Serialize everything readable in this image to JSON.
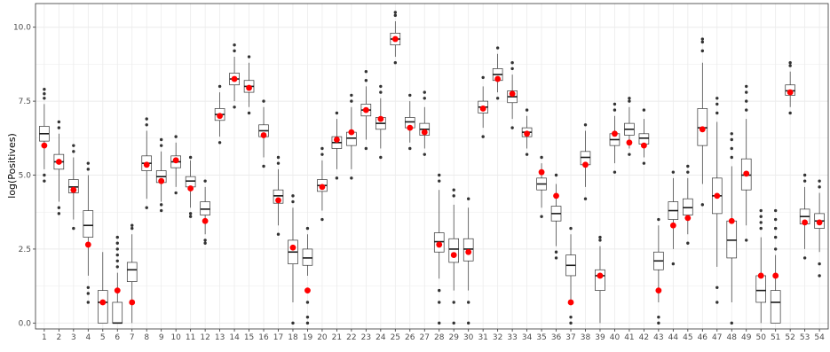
{
  "chart_data": {
    "type": "boxplot",
    "title": "",
    "xlabel": "",
    "ylabel": "log(Positives)",
    "ylim": [
      -0.2,
      10.8
    ],
    "y_ticks": [
      0.0,
      2.5,
      5.0,
      7.5,
      10.0
    ],
    "y_tick_labels": [
      "0.0",
      "2.5",
      "5.0",
      "7.5",
      "10.0"
    ],
    "grid": true,
    "legend": "none",
    "colors": {
      "box_fill": "#ffffff",
      "box_line": "#333333",
      "outlier": "#333333",
      "mean_point": "#ff0000",
      "grid": "#ebebeb",
      "panel_border": "#333333"
    },
    "categories": [
      "1",
      "2",
      "3",
      "4",
      "5",
      "6",
      "7",
      "8",
      "9",
      "10",
      "11",
      "12",
      "13",
      "14",
      "15",
      "16",
      "17",
      "18",
      "19",
      "20",
      "21",
      "22",
      "23",
      "24",
      "25",
      "26",
      "27",
      "28",
      "29",
      "30",
      "31",
      "32",
      "33",
      "34",
      "35",
      "36",
      "37",
      "38",
      "39",
      "40",
      "41",
      "42",
      "43",
      "44",
      "45",
      "46",
      "47",
      "48",
      "49",
      "50",
      "51",
      "52",
      "53",
      "54"
    ],
    "boxes": [
      {
        "x": "1",
        "lo": 5.2,
        "q1": 6.15,
        "med": 6.4,
        "q3": 6.65,
        "hi": 7.4,
        "mean": 6.0,
        "outliers": [
          4.8,
          5.0,
          7.6,
          7.75,
          7.9
        ]
      },
      {
        "x": "2",
        "lo": 4.1,
        "q1": 5.2,
        "med": 5.45,
        "q3": 5.7,
        "hi": 6.4,
        "mean": 5.45,
        "outliers": [
          3.7,
          3.9,
          6.6,
          6.8
        ]
      },
      {
        "x": "3",
        "lo": 3.5,
        "q1": 4.4,
        "med": 4.6,
        "q3": 4.85,
        "hi": 5.6,
        "mean": 4.5,
        "outliers": [
          3.2,
          5.8,
          6.0
        ]
      },
      {
        "x": "4",
        "lo": 1.6,
        "q1": 2.9,
        "med": 3.3,
        "q3": 3.8,
        "hi": 5.0,
        "mean": 2.65,
        "outliers": [
          0.7,
          1.0,
          1.2,
          5.2,
          5.4
        ]
      },
      {
        "x": "5",
        "lo": 0.0,
        "q1": 0.0,
        "med": 0.7,
        "q3": 1.1,
        "hi": 2.4,
        "mean": 0.7,
        "outliers": []
      },
      {
        "x": "6",
        "lo": 0.0,
        "q1": 0.0,
        "med": 0.0,
        "q3": 0.7,
        "hi": 1.7,
        "mean": 1.1,
        "outliers": [
          1.9,
          2.1,
          2.3,
          2.5,
          2.7,
          2.9
        ]
      },
      {
        "x": "7",
        "lo": 0.0,
        "q1": 1.4,
        "med": 1.8,
        "q3": 2.05,
        "hi": 3.0,
        "mean": 0.7,
        "outliers": [
          3.2,
          3.3
        ]
      },
      {
        "x": "8",
        "lo": 4.2,
        "q1": 5.15,
        "med": 5.4,
        "q3": 5.65,
        "hi": 6.5,
        "mean": 5.35,
        "outliers": [
          3.9,
          6.7,
          6.9
        ]
      },
      {
        "x": "9",
        "lo": 4.1,
        "q1": 4.75,
        "med": 4.95,
        "q3": 5.15,
        "hi": 5.8,
        "mean": 4.8,
        "outliers": [
          3.8,
          4.0,
          6.0,
          6.2
        ]
      },
      {
        "x": "10",
        "lo": 4.6,
        "q1": 5.25,
        "med": 5.45,
        "q3": 5.65,
        "hi": 6.1,
        "mean": 5.5,
        "outliers": [
          4.4,
          6.3
        ]
      },
      {
        "x": "11",
        "lo": 3.9,
        "q1": 4.6,
        "med": 4.8,
        "q3": 4.95,
        "hi": 5.5,
        "mean": 4.55,
        "outliers": [
          3.6,
          3.7,
          5.6
        ]
      },
      {
        "x": "12",
        "lo": 3.0,
        "q1": 3.65,
        "med": 3.85,
        "q3": 4.1,
        "hi": 4.6,
        "mean": 3.45,
        "outliers": [
          2.7,
          2.8,
          4.8
        ]
      },
      {
        "x": "13",
        "lo": 6.3,
        "q1": 6.85,
        "med": 7.05,
        "q3": 7.25,
        "hi": 7.8,
        "mean": 7.0,
        "outliers": [
          6.1,
          8.0
        ]
      },
      {
        "x": "14",
        "lo": 7.5,
        "q1": 8.05,
        "med": 8.25,
        "q3": 8.45,
        "hi": 9.0,
        "mean": 8.25,
        "outliers": [
          7.3,
          9.2,
          9.4
        ]
      },
      {
        "x": "15",
        "lo": 7.3,
        "q1": 7.8,
        "med": 8.0,
        "q3": 8.2,
        "hi": 8.8,
        "mean": 7.95,
        "outliers": [
          7.1,
          9.0
        ]
      },
      {
        "x": "16",
        "lo": 5.6,
        "q1": 6.3,
        "med": 6.5,
        "q3": 6.7,
        "hi": 7.3,
        "mean": 6.35,
        "outliers": [
          5.3,
          7.5
        ]
      },
      {
        "x": "17",
        "lo": 3.3,
        "q1": 4.05,
        "med": 4.3,
        "q3": 4.5,
        "hi": 5.2,
        "mean": 4.15,
        "outliers": [
          3.0,
          5.4,
          5.6
        ]
      },
      {
        "x": "18",
        "lo": 0.7,
        "q1": 2.0,
        "med": 2.4,
        "q3": 2.8,
        "hi": 3.9,
        "mean": 2.55,
        "outliers": [
          0.0,
          4.1,
          4.3
        ]
      },
      {
        "x": "19",
        "lo": 1.6,
        "q1": 1.95,
        "med": 2.2,
        "q3": 2.5,
        "hi": 3.0,
        "mean": 1.1,
        "outliers": [
          0.0,
          0.2,
          0.7,
          3.2
        ]
      },
      {
        "x": "20",
        "lo": 3.8,
        "q1": 4.45,
        "med": 4.65,
        "q3": 4.85,
        "hi": 5.5,
        "mean": 4.6,
        "outliers": [
          3.5,
          5.7,
          5.9
        ]
      },
      {
        "x": "21",
        "lo": 5.2,
        "q1": 5.9,
        "med": 6.1,
        "q3": 6.3,
        "hi": 6.9,
        "mean": 6.2,
        "outliers": [
          4.9,
          7.1
        ]
      },
      {
        "x": "22",
        "lo": 5.2,
        "q1": 6.0,
        "med": 6.25,
        "q3": 6.45,
        "hi": 7.3,
        "mean": 6.45,
        "outliers": [
          4.9,
          7.5,
          7.7
        ]
      },
      {
        "x": "23",
        "lo": 6.2,
        "q1": 7.0,
        "med": 7.2,
        "q3": 7.4,
        "hi": 8.0,
        "mean": 7.2,
        "outliers": [
          5.9,
          8.2,
          8.5
        ]
      },
      {
        "x": "24",
        "lo": 5.9,
        "q1": 6.55,
        "med": 6.75,
        "q3": 6.95,
        "hi": 7.6,
        "mean": 6.9,
        "outliers": [
          5.6,
          7.8,
          8.0
        ]
      },
      {
        "x": "25",
        "lo": 9.0,
        "q1": 9.4,
        "med": 9.6,
        "q3": 9.8,
        "hi": 10.2,
        "mean": 9.6,
        "outliers": [
          8.8,
          10.4,
          10.5
        ]
      },
      {
        "x": "26",
        "lo": 6.1,
        "q1": 6.6,
        "med": 6.8,
        "q3": 6.95,
        "hi": 7.5,
        "mean": 6.6,
        "outliers": [
          5.9,
          7.7
        ]
      },
      {
        "x": "27",
        "lo": 5.9,
        "q1": 6.35,
        "med": 6.55,
        "q3": 6.75,
        "hi": 7.3,
        "mean": 6.45,
        "outliers": [
          5.7,
          7.6,
          7.8
        ]
      },
      {
        "x": "28",
        "lo": 1.5,
        "q1": 2.4,
        "med": 2.75,
        "q3": 3.05,
        "hi": 4.5,
        "mean": 2.65,
        "outliers": [
          0.0,
          0.7,
          1.1,
          4.8,
          5.0
        ]
      },
      {
        "x": "29",
        "lo": 1.1,
        "q1": 2.05,
        "med": 2.5,
        "q3": 2.85,
        "hi": 4.0,
        "mean": 2.3,
        "outliers": [
          0.0,
          0.7,
          4.3,
          4.5
        ]
      },
      {
        "x": "30",
        "lo": 1.1,
        "q1": 2.1,
        "med": 2.5,
        "q3": 2.85,
        "hi": 3.9,
        "mean": 2.4,
        "outliers": [
          0.0,
          0.7,
          4.2
        ]
      },
      {
        "x": "31",
        "lo": 6.6,
        "q1": 7.1,
        "med": 7.3,
        "q3": 7.5,
        "hi": 8.0,
        "mean": 7.25,
        "outliers": [
          6.3,
          8.3
        ]
      },
      {
        "x": "32",
        "lo": 7.8,
        "q1": 8.2,
        "med": 8.4,
        "q3": 8.6,
        "hi": 9.1,
        "mean": 8.25,
        "outliers": [
          7.6,
          9.3
        ]
      },
      {
        "x": "33",
        "lo": 6.9,
        "q1": 7.45,
        "med": 7.65,
        "q3": 7.85,
        "hi": 8.4,
        "mean": 7.75,
        "outliers": [
          6.6,
          8.6,
          8.8
        ]
      },
      {
        "x": "34",
        "lo": 5.9,
        "q1": 6.3,
        "med": 6.45,
        "q3": 6.6,
        "hi": 7.0,
        "mean": 6.4,
        "outliers": [
          5.7,
          7.2
        ]
      },
      {
        "x": "35",
        "lo": 3.9,
        "q1": 4.5,
        "med": 4.7,
        "q3": 4.9,
        "hi": 5.4,
        "mean": 5.1,
        "outliers": [
          3.6,
          5.6
        ]
      },
      {
        "x": "36",
        "lo": 2.6,
        "q1": 3.45,
        "med": 3.7,
        "q3": 3.95,
        "hi": 4.7,
        "mean": 4.3,
        "outliers": [
          2.2,
          2.4,
          5.0
        ]
      },
      {
        "x": "37",
        "lo": 0.7,
        "q1": 1.6,
        "med": 1.95,
        "q3": 2.3,
        "hi": 3.0,
        "mean": 0.7,
        "outliers": [
          0.0,
          0.2,
          3.2
        ]
      },
      {
        "x": "38",
        "lo": 4.6,
        "q1": 5.35,
        "med": 5.6,
        "q3": 5.8,
        "hi": 6.5,
        "mean": 5.35,
        "outliers": [
          4.2,
          6.7
        ]
      },
      {
        "x": "39",
        "lo": 0.0,
        "q1": 1.1,
        "med": 1.6,
        "q3": 1.8,
        "hi": 2.6,
        "mean": 1.6,
        "outliers": [
          2.8,
          2.9
        ]
      },
      {
        "x": "40",
        "lo": 5.4,
        "q1": 6.0,
        "med": 6.2,
        "q3": 6.4,
        "hi": 7.0,
        "mean": 6.4,
        "outliers": [
          5.1,
          7.2,
          7.4
        ]
      },
      {
        "x": "41",
        "lo": 5.9,
        "q1": 6.35,
        "med": 6.55,
        "q3": 6.75,
        "hi": 7.3,
        "mean": 6.1,
        "outliers": [
          5.7,
          7.5,
          7.6
        ]
      },
      {
        "x": "42",
        "lo": 5.6,
        "q1": 6.05,
        "med": 6.25,
        "q3": 6.4,
        "hi": 6.9,
        "mean": 6.0,
        "outliers": [
          5.4,
          7.2
        ]
      },
      {
        "x": "43",
        "lo": 0.7,
        "q1": 1.8,
        "med": 2.1,
        "q3": 2.4,
        "hi": 3.3,
        "mean": 1.1,
        "outliers": [
          0.0,
          0.2,
          3.5
        ]
      },
      {
        "x": "44",
        "lo": 2.5,
        "q1": 3.5,
        "med": 3.8,
        "q3": 4.1,
        "hi": 4.9,
        "mean": 3.3,
        "outliers": [
          2.0,
          5.1
        ]
      },
      {
        "x": "45",
        "lo": 3.0,
        "q1": 3.65,
        "med": 3.9,
        "q3": 4.2,
        "hi": 4.9,
        "mean": 3.55,
        "outliers": [
          2.7,
          5.1,
          5.3
        ]
      },
      {
        "x": "46",
        "lo": 4.7,
        "q1": 6.0,
        "med": 6.6,
        "q3": 7.25,
        "hi": 8.8,
        "mean": 6.55,
        "outliers": [
          4.0,
          9.2,
          9.5,
          9.6
        ]
      },
      {
        "x": "47",
        "lo": 1.9,
        "q1": 3.7,
        "med": 4.3,
        "q3": 4.9,
        "hi": 6.8,
        "mean": 4.3,
        "outliers": [
          0.7,
          1.2,
          7.1,
          7.4,
          7.6
        ]
      },
      {
        "x": "48",
        "lo": 0.7,
        "q1": 2.2,
        "med": 2.8,
        "q3": 3.45,
        "hi": 5.3,
        "mean": 3.45,
        "outliers": [
          0.0,
          5.6,
          5.9,
          6.2,
          6.4
        ]
      },
      {
        "x": "49",
        "lo": 3.3,
        "q1": 4.5,
        "med": 5.0,
        "q3": 5.55,
        "hi": 6.9,
        "mean": 5.05,
        "outliers": [
          2.8,
          7.2,
          7.5,
          7.8,
          8.0
        ]
      },
      {
        "x": "50",
        "lo": 0.0,
        "q1": 0.7,
        "med": 1.1,
        "q3": 1.6,
        "hi": 2.9,
        "mean": 1.6,
        "outliers": [
          3.2,
          3.4,
          3.6,
          3.8
        ]
      },
      {
        "x": "51",
        "lo": 0.0,
        "q1": 0.0,
        "med": 0.7,
        "q3": 1.1,
        "hi": 2.3,
        "mean": 1.6,
        "outliers": [
          2.5,
          2.9,
          3.2,
          3.5,
          3.8
        ]
      },
      {
        "x": "52",
        "lo": 7.3,
        "q1": 7.7,
        "med": 7.85,
        "q3": 8.05,
        "hi": 8.5,
        "mean": 7.8,
        "outliers": [
          7.1,
          8.7,
          8.8
        ]
      },
      {
        "x": "53",
        "lo": 2.5,
        "q1": 3.35,
        "med": 3.6,
        "q3": 3.85,
        "hi": 4.6,
        "mean": 3.4,
        "outliers": [
          2.2,
          4.8,
          5.0
        ]
      },
      {
        "x": "54",
        "lo": 2.4,
        "q1": 3.2,
        "med": 3.45,
        "q3": 3.7,
        "hi": 4.4,
        "mean": 3.4,
        "outliers": [
          1.6,
          2.0,
          4.6,
          4.8
        ]
      }
    ]
  }
}
